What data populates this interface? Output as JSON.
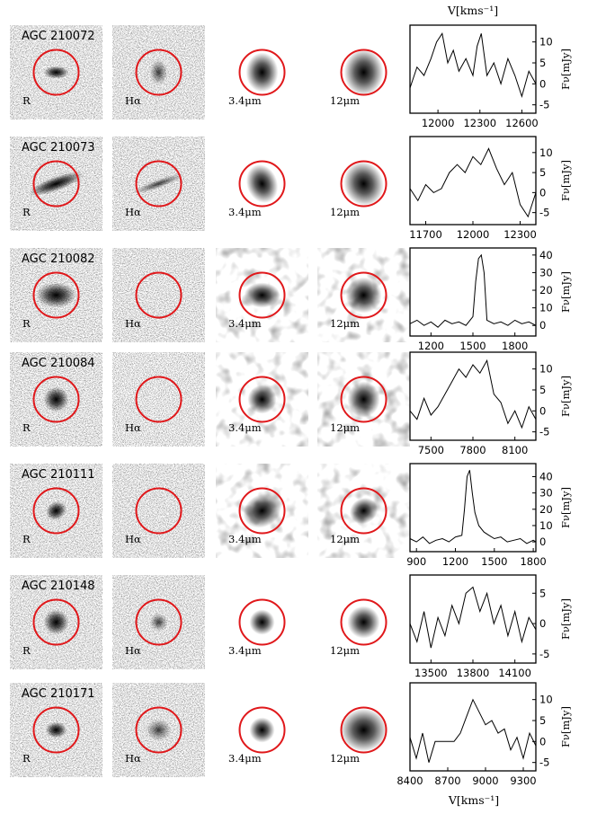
{
  "figure": {
    "top_xlabel": "V[kms⁻¹]",
    "bottom_xlabel": "V[kms⁻¹]",
    "ylabel": "Fν[mJy]",
    "aperture_color": "#e0181b",
    "band_labels": [
      "R",
      "Hα",
      "3.4μm",
      "12μm"
    ]
  },
  "chart_data": [
    {
      "type": "line",
      "title": "AGC 210072",
      "xlim": [
        11800,
        12700
      ],
      "ylim": [
        -7,
        14
      ],
      "xticks": [
        "12000",
        "12300",
        "12600"
      ],
      "yticks": [
        "10",
        "5",
        "0",
        "-5"
      ],
      "xlabel": "V[kms⁻¹]",
      "ylabel": "Fν[mJy]",
      "x": [
        11800,
        11850,
        11900,
        11950,
        11990,
        12030,
        12070,
        12110,
        12150,
        12200,
        12250,
        12280,
        12310,
        12350,
        12400,
        12450,
        12500,
        12550,
        12600,
        12650,
        12700
      ],
      "y": [
        -1,
        4,
        2,
        6,
        10,
        12,
        5,
        8,
        3,
        6,
        2,
        9,
        12,
        2,
        5,
        0,
        6,
        2,
        -3,
        3,
        0
      ]
    },
    {
      "type": "line",
      "title": "AGC 210073",
      "xlim": [
        11600,
        12400
      ],
      "ylim": [
        -8,
        14
      ],
      "xticks": [
        "11700",
        "12000",
        "12300"
      ],
      "yticks": [
        "10",
        "5",
        "0",
        "-5"
      ],
      "xlabel": "",
      "ylabel": "Fν[mJy]",
      "x": [
        11600,
        11650,
        11700,
        11750,
        11800,
        11850,
        11900,
        11950,
        12000,
        12050,
        12100,
        12150,
        12200,
        12250,
        12300,
        12350,
        12400
      ],
      "y": [
        1,
        -2,
        2,
        0,
        1,
        5,
        7,
        5,
        9,
        7,
        11,
        6,
        2,
        5,
        -3,
        -6,
        0
      ]
    },
    {
      "type": "line",
      "title": "AGC 210082",
      "xlim": [
        1050,
        1950
      ],
      "ylim": [
        -6,
        44
      ],
      "xticks": [
        "1200",
        "1500",
        "1800"
      ],
      "yticks": [
        "40",
        "30",
        "20",
        "10",
        "0"
      ],
      "xlabel": "",
      "ylabel": "Fν[mJy]",
      "x": [
        1050,
        1100,
        1150,
        1200,
        1250,
        1300,
        1350,
        1400,
        1450,
        1500,
        1520,
        1540,
        1560,
        1580,
        1600,
        1650,
        1700,
        1750,
        1800,
        1850,
        1900,
        1950
      ],
      "y": [
        1,
        3,
        0,
        2,
        -1,
        3,
        1,
        2,
        0,
        5,
        25,
        38,
        40,
        30,
        3,
        1,
        2,
        0,
        3,
        1,
        2,
        0
      ]
    },
    {
      "type": "line",
      "title": "AGC 210084",
      "xlim": [
        7350,
        8250
      ],
      "ylim": [
        -7,
        14
      ],
      "xticks": [
        "7500",
        "7800",
        "8100"
      ],
      "yticks": [
        "10",
        "5",
        "0",
        "-5"
      ],
      "xlabel": "",
      "ylabel": "Fν[mJy]",
      "x": [
        7350,
        7400,
        7450,
        7500,
        7550,
        7600,
        7650,
        7700,
        7750,
        7800,
        7850,
        7900,
        7950,
        8000,
        8050,
        8100,
        8150,
        8200,
        8250
      ],
      "y": [
        0,
        -2,
        3,
        -1,
        1,
        4,
        7,
        10,
        8,
        11,
        9,
        12,
        4,
        2,
        -3,
        0,
        -4,
        1,
        -2
      ]
    },
    {
      "type": "line",
      "title": "AGC 210111",
      "xlim": [
        850,
        1820
      ],
      "ylim": [
        -6,
        48
      ],
      "xticks": [
        "900",
        "1200",
        "1500",
        "1800"
      ],
      "yticks": [
        "40",
        "30",
        "20",
        "10",
        "0"
      ],
      "xlabel": "",
      "ylabel": "Fν[mJy]",
      "x": [
        850,
        900,
        950,
        1000,
        1050,
        1100,
        1150,
        1200,
        1250,
        1270,
        1290,
        1310,
        1330,
        1350,
        1380,
        1420,
        1460,
        1500,
        1550,
        1600,
        1650,
        1700,
        1750,
        1800,
        1820
      ],
      "y": [
        2,
        0,
        3,
        -1,
        1,
        2,
        0,
        3,
        4,
        20,
        40,
        44,
        30,
        18,
        10,
        6,
        4,
        2,
        3,
        0,
        1,
        2,
        -1,
        1,
        0
      ]
    },
    {
      "type": "line",
      "title": "AGC 210148",
      "xlim": [
        13350,
        14250
      ],
      "ylim": [
        -6.5,
        8
      ],
      "xticks": [
        "13500",
        "13800",
        "14100"
      ],
      "yticks": [
        "5",
        "0",
        "-5"
      ],
      "xlabel": "",
      "ylabel": "Fν[mJy]",
      "x": [
        13350,
        13400,
        13450,
        13500,
        13550,
        13600,
        13650,
        13700,
        13750,
        13800,
        13850,
        13900,
        13950,
        14000,
        14050,
        14100,
        14150,
        14200,
        14250
      ],
      "y": [
        0,
        -3,
        2,
        -4,
        1,
        -2,
        3,
        0,
        5,
        6,
        2,
        5,
        0,
        3,
        -2,
        2,
        -3,
        1,
        -1
      ]
    },
    {
      "type": "line",
      "title": "AGC 210171",
      "xlim": [
        8400,
        9400
      ],
      "ylim": [
        -7,
        14
      ],
      "xticks": [
        "8400",
        "8700",
        "9000",
        "9300"
      ],
      "yticks": [
        "10",
        "5",
        "0",
        "-5"
      ],
      "xlabel": "V[kms⁻¹]",
      "ylabel": "Fν[mJy]",
      "x": [
        8400,
        8450,
        8500,
        8550,
        8600,
        8650,
        8700,
        8750,
        8800,
        8850,
        8900,
        8950,
        9000,
        9050,
        9100,
        9150,
        9200,
        9250,
        9300,
        9350,
        9400
      ],
      "y": [
        1,
        -4,
        2,
        -5,
        0,
        0,
        0,
        0,
        2,
        6,
        10,
        7,
        4,
        5,
        2,
        3,
        -2,
        1,
        -4,
        2,
        -1
      ]
    }
  ]
}
